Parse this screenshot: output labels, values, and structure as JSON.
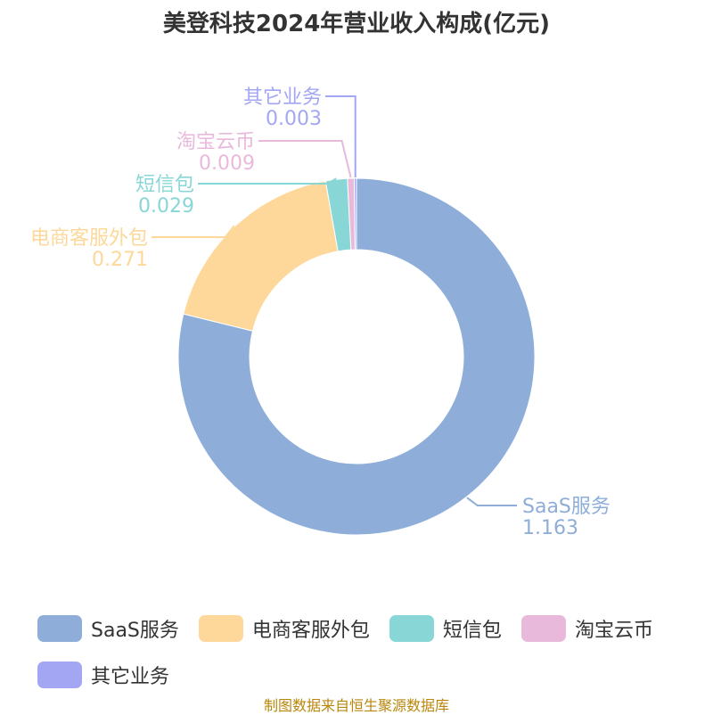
{
  "title": "美登科技2024年营业收入构成(亿元)",
  "source": "制图数据来自恒生聚源数据库",
  "chart_data": {
    "type": "pie",
    "variant": "donut",
    "title": "美登科技2024年营业收入构成(亿元)",
    "slices": [
      {
        "name": "SaaS服务",
        "value": 1.163,
        "label": "1.163",
        "color": "#8eaed9"
      },
      {
        "name": "电商客服外包",
        "value": 0.271,
        "label": "0.271",
        "color": "#fdd89a"
      },
      {
        "name": "短信包",
        "value": 0.029,
        "label": "0.029",
        "color": "#88d7d6"
      },
      {
        "name": "淘宝云币",
        "value": 0.009,
        "label": "0.009",
        "color": "#e9b9dc"
      },
      {
        "name": "其它业务",
        "value": 0.003,
        "label": "0.003",
        "color": "#a3a6f3"
      }
    ],
    "legend": "bottom"
  }
}
